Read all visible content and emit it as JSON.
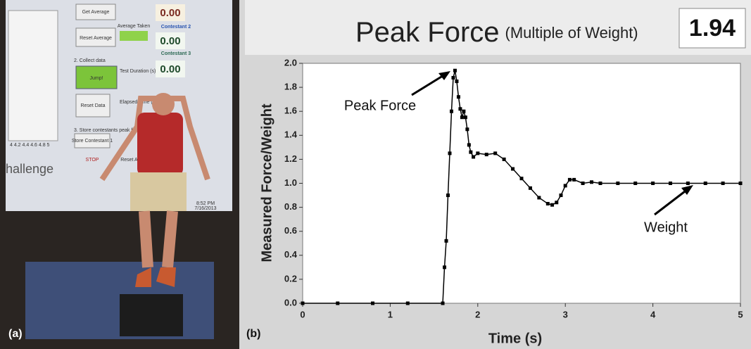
{
  "photo": {
    "panel_label": "(a)",
    "screen_texts": [
      "Get Average",
      "0.00",
      "Contestant 2",
      "Reset Average",
      "Average Taken",
      "0.00",
      "Contestant 3",
      "0.00",
      "2. Collect data",
      "Jump!",
      "Test Duration (s)",
      "Reset Data",
      "Elapsed Time (s)",
      "3. Store contestants peak force",
      "Store Contestant 1",
      "STOP",
      "Reset All",
      "hallenge",
      "4  4.2  4.4  4.6  4.8  5",
      "8:52 PM",
      "7/16/2013"
    ]
  },
  "header": {
    "title": "Peak Force",
    "subtitle": "(Multiple of Weight)",
    "value": "1.94"
  },
  "chart_data": {
    "type": "line",
    "panel_label": "(b)",
    "x_label": "Time (s)",
    "y_label": "Measured Force/Weight",
    "annotations": [
      "Peak Force",
      "Weight"
    ],
    "color": "#000000",
    "grid": false,
    "x": [
      0,
      0.4,
      0.8,
      1.2,
      1.6,
      1.62,
      1.64,
      1.66,
      1.68,
      1.7,
      1.72,
      1.74,
      1.76,
      1.78,
      1.8,
      1.82,
      1.84,
      1.86,
      1.88,
      1.9,
      1.92,
      1.95,
      2.0,
      2.1,
      2.2,
      2.3,
      2.4,
      2.5,
      2.6,
      2.7,
      2.8,
      2.85,
      2.9,
      2.95,
      3.0,
      3.05,
      3.1,
      3.2,
      3.3,
      3.4,
      3.6,
      3.8,
      4.0,
      4.2,
      4.4,
      4.6,
      4.8,
      5.0
    ],
    "values": [
      0,
      0,
      0,
      0,
      0,
      0.3,
      0.52,
      0.9,
      1.25,
      1.6,
      1.88,
      1.94,
      1.85,
      1.72,
      1.62,
      1.55,
      1.6,
      1.55,
      1.45,
      1.32,
      1.26,
      1.22,
      1.25,
      1.24,
      1.25,
      1.2,
      1.12,
      1.04,
      0.96,
      0.88,
      0.83,
      0.82,
      0.84,
      0.9,
      0.98,
      1.03,
      1.03,
      1.0,
      1.01,
      1.0,
      1.0,
      1.0,
      1.0,
      1.0,
      1.0,
      1.0,
      1.0,
      1.0
    ],
    "xlim": [
      0,
      5
    ],
    "xticks": [
      0,
      1,
      2,
      3,
      4,
      5
    ],
    "ylim": [
      0,
      2
    ],
    "yticks": [
      {
        "value": 0,
        "label": "0.0"
      },
      0.2,
      0.4,
      0.6,
      0.8,
      {
        "value": 1,
        "label": "1.0"
      },
      1.2,
      1.4,
      1.6,
      1.8,
      {
        "value": 2,
        "label": "2.0"
      }
    ]
  }
}
